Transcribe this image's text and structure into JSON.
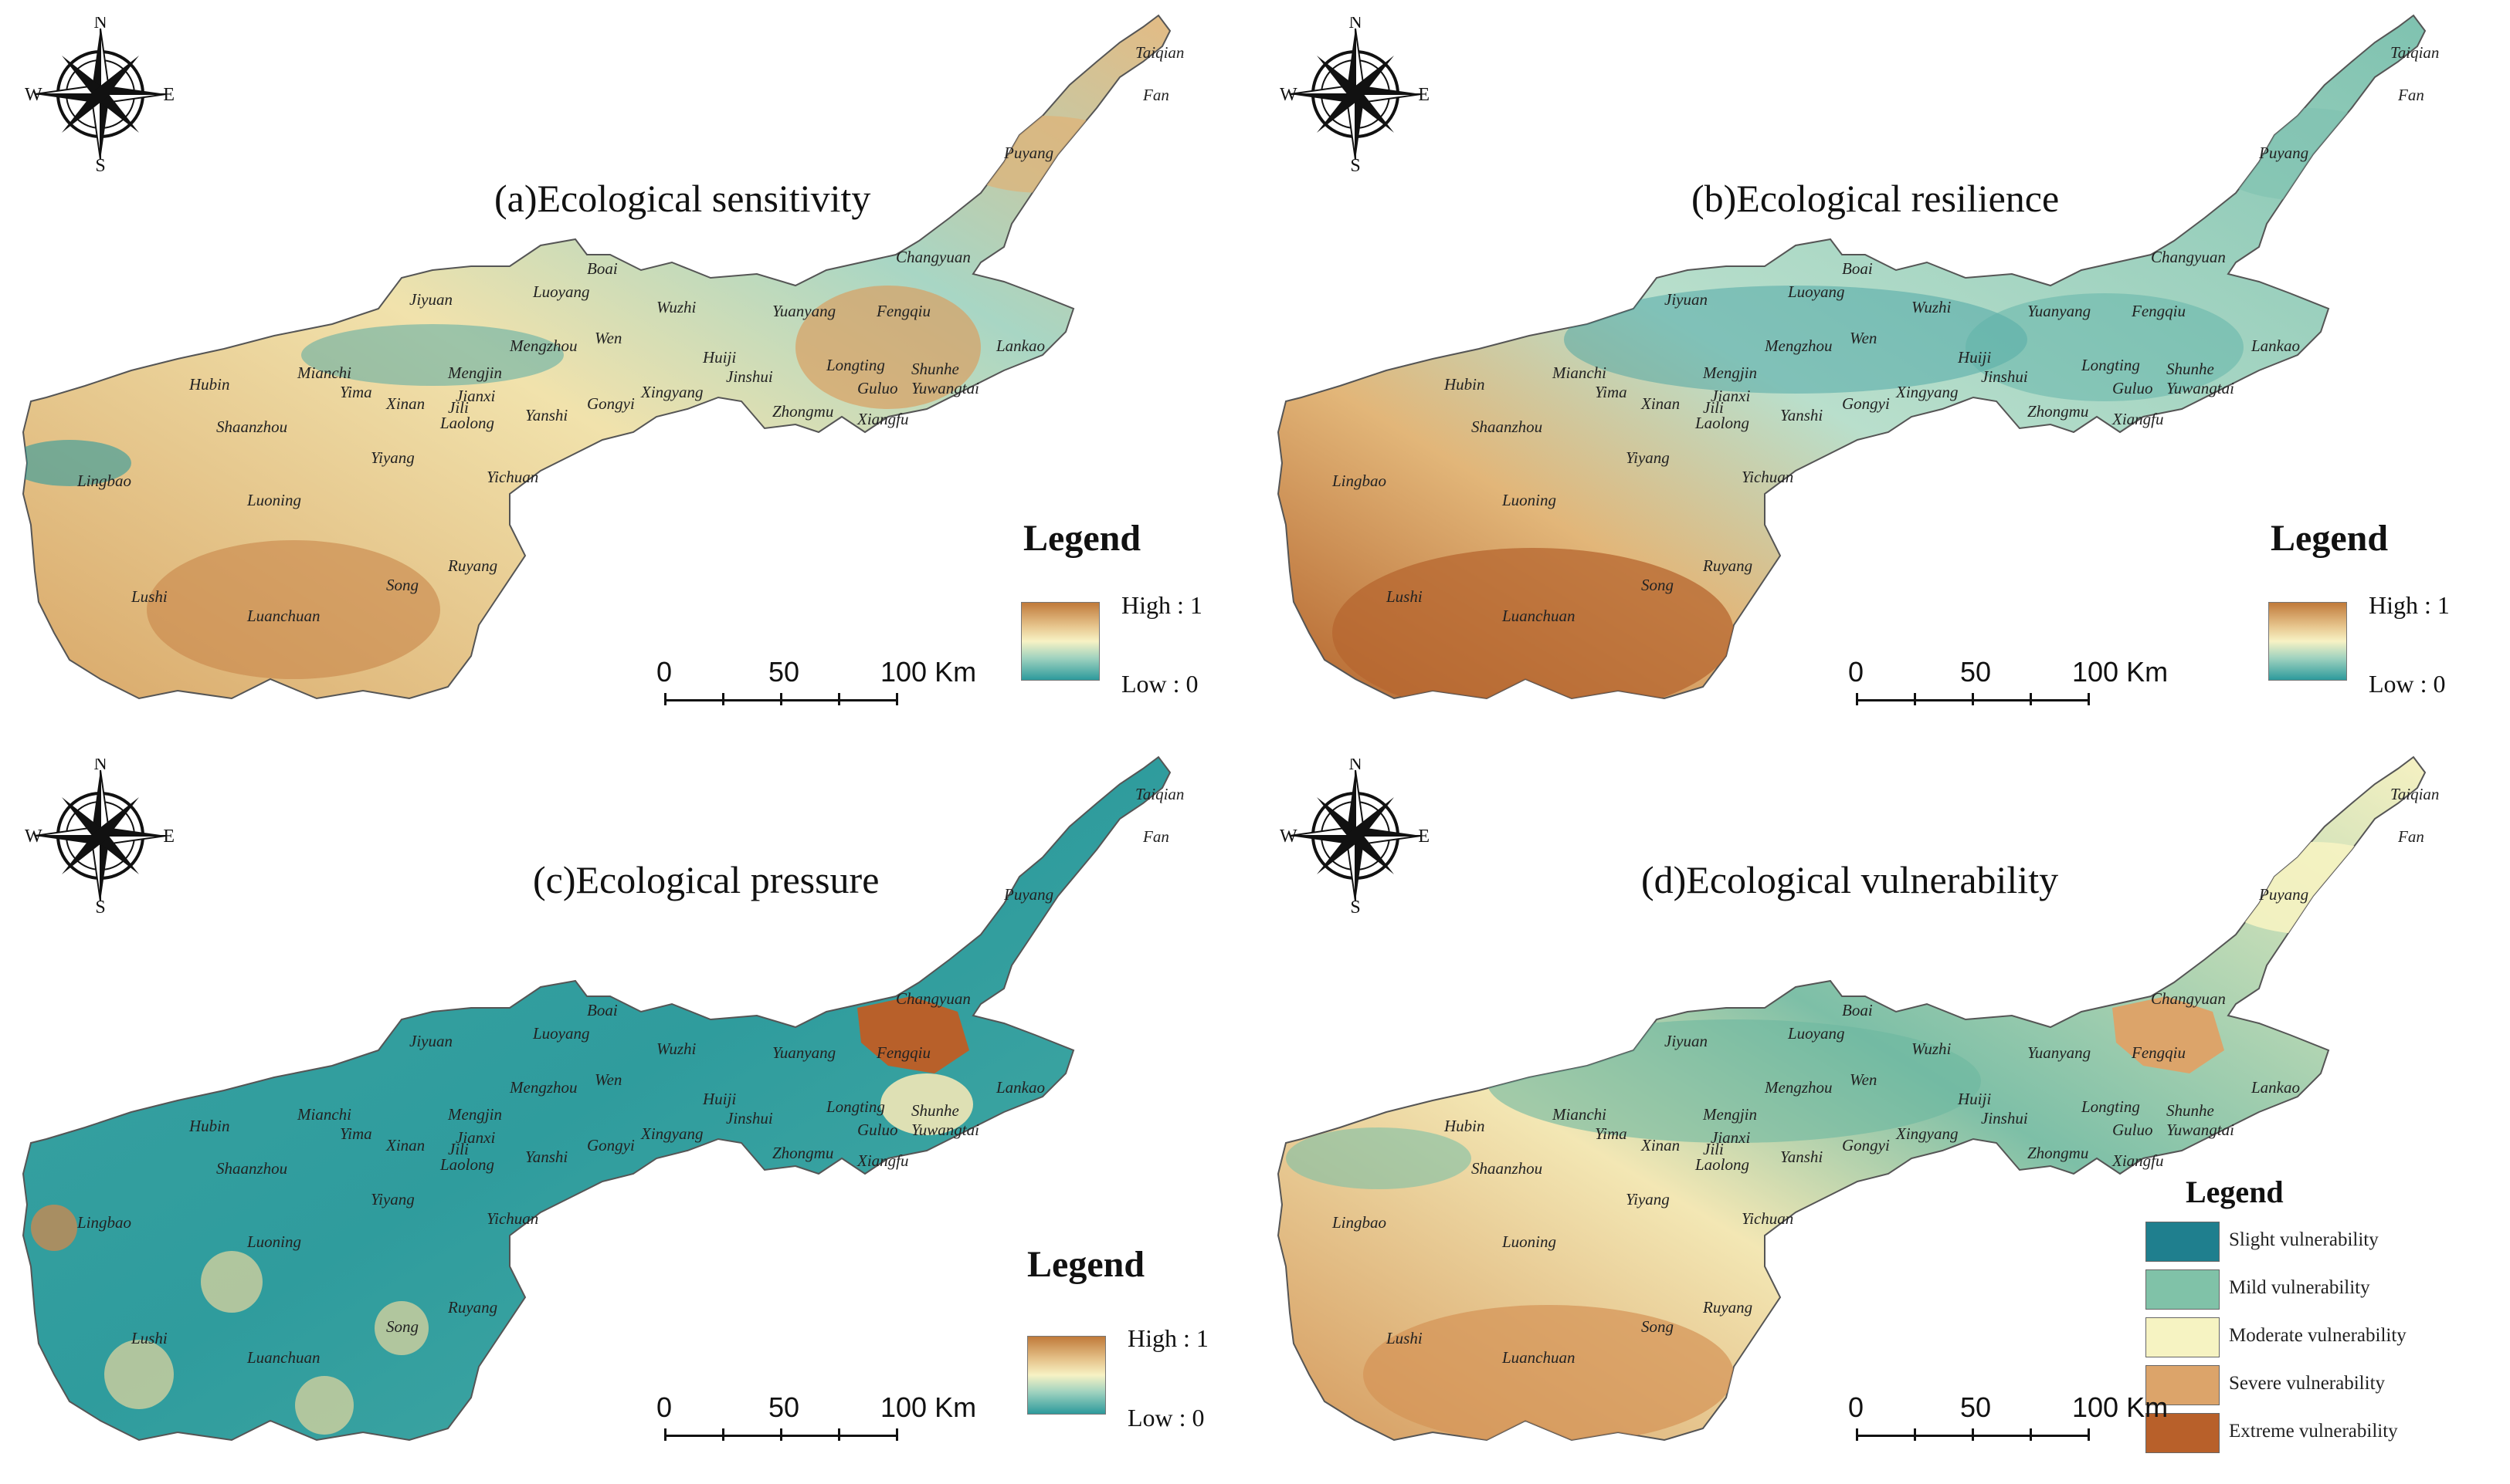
{
  "compass": {
    "n": "N",
    "s": "S",
    "e": "E",
    "w": "W"
  },
  "scalebar": {
    "labels": [
      "0",
      "50",
      "100 Km"
    ]
  },
  "legend_title": "Legend",
  "continuous_legend": {
    "high": "High : 1",
    "low": "Low : 0"
  },
  "panels": [
    {
      "title": "(a)Ecological sensitivity"
    },
    {
      "title": "(b)Ecological resilience"
    },
    {
      "title": "(c)Ecological pressure"
    },
    {
      "title": "(d)Ecological vulnerability"
    }
  ],
  "categorical_legend": {
    "items": [
      {
        "label": "Slight vulnerability",
        "color": "#1f7f8e"
      },
      {
        "label": "Mild vulnerability",
        "color": "#80c2a8"
      },
      {
        "label": "Moderate vulnerability",
        "color": "#f6f3c2"
      },
      {
        "label": "Severe vulnerability",
        "color": "#dca46a"
      },
      {
        "label": "Extreme vulnerability",
        "color": "#b8602a"
      }
    ]
  },
  "colors": {
    "high": "#c07a3a",
    "mid": "#f7f2c4",
    "low": "#2d9a9c"
  },
  "counties": [
    "Taiqian",
    "Fan",
    "Puyang",
    "Changyuan",
    "Jiyuan",
    "Luoyang",
    "Boai",
    "Wuzhi",
    "Yuanyang",
    "Fengqiu",
    "Lankao",
    "Huiji",
    "Mengzhou",
    "Wen",
    "Mianchi",
    "Hubin",
    "Yima",
    "Xinan",
    "Mengjin",
    "Jili",
    "Jianxi",
    "Laolong",
    "Yanshi",
    "Gongyi",
    "Xingyang",
    "Jinshui",
    "Zhongmu",
    "Longting",
    "Shunhe",
    "Guluo",
    "Yuwangtai",
    "Xiangfu",
    "Shaanzhou",
    "Lingbao",
    "Lushi",
    "Luoning",
    "Yiyang",
    "Yichuan",
    "Ruyang",
    "Song",
    "Luanchuan"
  ]
}
